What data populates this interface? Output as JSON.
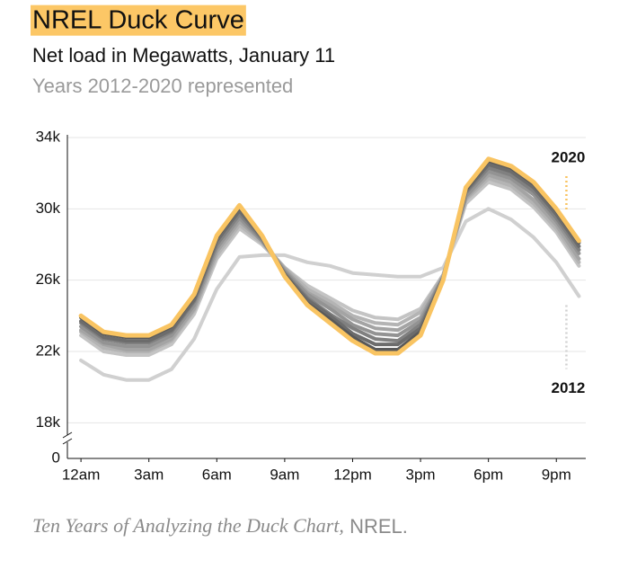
{
  "chart_data": {
    "type": "line",
    "title": "NREL Duck Curve",
    "subtitle": "Net load in Megawatts, January 11",
    "note": "Years 2012-2020 represented",
    "source_title": "Ten Years of Analyzing the Duck Chart,",
    "source_publisher": "NREL.",
    "title_highlight": "#fcc766",
    "x": [
      0,
      1,
      2,
      3,
      4,
      5,
      6,
      7,
      8,
      9,
      10,
      11,
      12,
      13,
      14,
      15,
      16,
      17,
      18,
      19,
      20,
      21,
      22
    ],
    "xlim": [
      -0.6,
      22.3
    ],
    "xticks": [
      {
        "value": 0,
        "label": "12am"
      },
      {
        "value": 3,
        "label": "3am"
      },
      {
        "value": 6,
        "label": "6am"
      },
      {
        "value": 9,
        "label": "9am"
      },
      {
        "value": 12,
        "label": "12pm"
      },
      {
        "value": 15,
        "label": "3pm"
      },
      {
        "value": 18,
        "label": "6pm"
      },
      {
        "value": 21,
        "label": "9pm"
      }
    ],
    "ylim": [
      0,
      34000
    ],
    "axis_break": [
      0,
      16000
    ],
    "yticks": [
      0,
      {
        "value": 18000,
        "label": "18k"
      },
      {
        "value": 22000,
        "label": "22k"
      },
      {
        "value": 26000,
        "label": "26k"
      },
      {
        "value": 30000,
        "label": "30k"
      },
      {
        "value": 34000,
        "label": "34k"
      }
    ],
    "grid": true,
    "series": [
      {
        "name": "2012",
        "color": "#d0d0d0",
        "values": [
          21500,
          20700,
          20400,
          20400,
          21000,
          22700,
          25500,
          27300,
          27400,
          27400,
          27000,
          26800,
          26400,
          26300,
          26200,
          26200,
          26700,
          29300,
          30000,
          29400,
          28400,
          27000,
          25100
        ]
      },
      {
        "color": "#c4c4c4",
        "values": [
          22900,
          22000,
          21800,
          21800,
          22400,
          24100,
          27200,
          28900,
          28000,
          26700,
          25700,
          25000,
          24300,
          23900,
          23800,
          24400,
          26300,
          30300,
          31500,
          31100,
          30100,
          28700,
          26800
        ]
      },
      {
        "color": "#b4b4b4",
        "values": [
          23100,
          22200,
          22000,
          22000,
          22600,
          24300,
          27400,
          29100,
          28100,
          26700,
          25500,
          24800,
          24000,
          23600,
          23500,
          24200,
          26300,
          30500,
          31700,
          31300,
          30300,
          28900,
          27000
        ]
      },
      {
        "color": "#a4a4a4",
        "values": [
          23200,
          22400,
          22100,
          22100,
          22700,
          24400,
          27600,
          29300,
          28200,
          26600,
          25300,
          24600,
          23800,
          23300,
          23200,
          23900,
          26200,
          30600,
          31900,
          31500,
          30500,
          29100,
          27200
        ]
      },
      {
        "color": "#939393",
        "values": [
          23400,
          22500,
          22300,
          22300,
          22900,
          24600,
          27800,
          29500,
          28200,
          26500,
          25200,
          24400,
          23500,
          23000,
          22900,
          23700,
          26200,
          30700,
          32100,
          31700,
          30800,
          29300,
          27500
        ]
      },
      {
        "color": "#808080",
        "values": [
          23600,
          22700,
          22500,
          22500,
          23100,
          24800,
          28000,
          29700,
          28300,
          26400,
          25000,
          24100,
          23300,
          22700,
          22600,
          23500,
          26100,
          30900,
          32300,
          31900,
          31000,
          29500,
          27700
        ]
      },
      {
        "color": "#6c6c6c",
        "values": [
          23700,
          22800,
          22600,
          22600,
          23200,
          24900,
          28200,
          29900,
          28400,
          26300,
          24900,
          24000,
          23000,
          22400,
          22400,
          23300,
          26100,
          31000,
          32500,
          32100,
          31200,
          29700,
          27900
        ]
      },
      {
        "color": "#595959",
        "values": [
          23900,
          23000,
          22800,
          22800,
          23400,
          25100,
          28400,
          30100,
          28500,
          26300,
          24700,
          23800,
          22800,
          22100,
          22100,
          23100,
          26000,
          31100,
          32700,
          32300,
          31400,
          29900,
          28100
        ]
      },
      {
        "name": "2020",
        "color": "#f9c462",
        "values": [
          24000,
          23100,
          22900,
          22900,
          23500,
          25200,
          28500,
          30200,
          28500,
          26200,
          24600,
          23600,
          22600,
          21900,
          21900,
          22900,
          26000,
          31200,
          32800,
          32400,
          31500,
          30000,
          28200
        ]
      }
    ]
  }
}
